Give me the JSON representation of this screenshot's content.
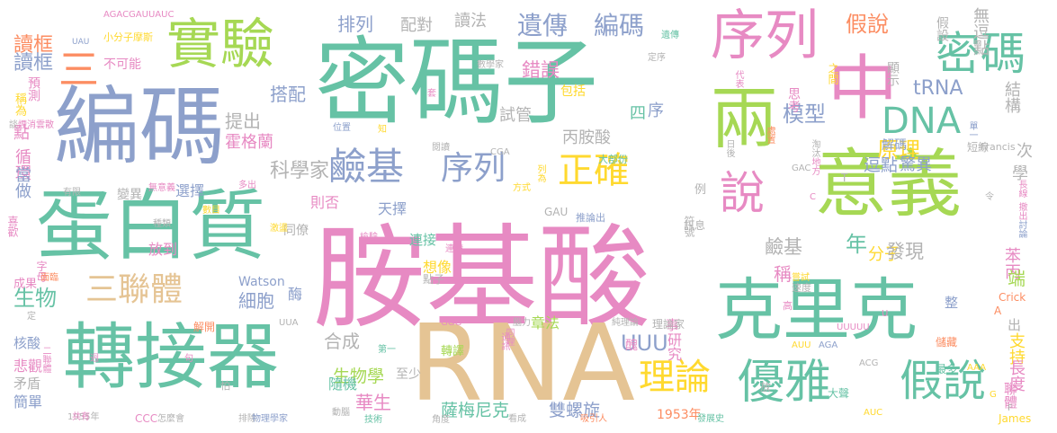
{
  "palette": {
    "teal": "#66c2a5",
    "orange": "#fc8d62",
    "blue": "#8da0cb",
    "pink": "#e78ac3",
    "lime": "#a6d854",
    "yellow": "#ffd92f",
    "tan": "#e5c494",
    "grey": "#b3b3b3"
  },
  "words": [
    {
      "text": "胺基酸",
      "color": "pink"
    },
    {
      "text": "密碼子",
      "color": "teal"
    },
    {
      "text": "RNA",
      "color": "tan"
    },
    {
      "text": "編碼",
      "color": "blue"
    },
    {
      "text": "蛋白質",
      "color": "teal"
    },
    {
      "text": "轉接器",
      "color": "teal"
    },
    {
      "text": "克里克",
      "color": "teal"
    },
    {
      "text": "意義",
      "color": "lime"
    },
    {
      "text": "中",
      "color": "pink"
    },
    {
      "text": "兩",
      "color": "lime"
    },
    {
      "text": "序列",
      "color": "pink"
    },
    {
      "text": "實驗",
      "color": "lime"
    },
    {
      "text": "密碼",
      "color": "teal"
    },
    {
      "text": "優雅",
      "color": "teal"
    },
    {
      "text": "假說",
      "color": "teal"
    },
    {
      "text": "說",
      "color": "pink"
    },
    {
      "text": "DNA",
      "color": "teal"
    },
    {
      "text": "鹼基",
      "color": "blue"
    },
    {
      "text": "序列",
      "color": "blue"
    },
    {
      "text": "正確",
      "color": "yellow"
    },
    {
      "text": "理論",
      "color": "yellow"
    },
    {
      "text": "三聯體",
      "color": "tan"
    },
    {
      "text": "三",
      "color": "orange"
    },
    {
      "text": "遺傳",
      "color": "blue"
    },
    {
      "text": "編碼",
      "color": "blue"
    },
    {
      "text": "假說",
      "color": "orange"
    },
    {
      "text": "模型",
      "color": "blue"
    },
    {
      "text": "原理",
      "color": "yellow"
    },
    {
      "text": "UUU",
      "color": "blue"
    },
    {
      "text": "tRNA",
      "color": "blue"
    },
    {
      "text": "薩梅尼克",
      "color": "teal"
    },
    {
      "text": "雙螺旋",
      "color": "blue"
    },
    {
      "text": "生物學",
      "color": "lime"
    },
    {
      "text": "華生",
      "color": "pink"
    },
    {
      "text": "鹼基",
      "color": "grey"
    },
    {
      "text": "年",
      "color": "teal"
    },
    {
      "text": "分子",
      "color": "yellow"
    },
    {
      "text": "發現",
      "color": "grey"
    },
    {
      "text": "科學家",
      "color": "grey"
    },
    {
      "text": "細胞",
      "color": "blue"
    },
    {
      "text": "合成",
      "color": "grey"
    },
    {
      "text": "生物",
      "color": "teal"
    },
    {
      "text": "讀框",
      "color": "orange"
    },
    {
      "text": "讀框",
      "color": "blue"
    },
    {
      "text": "提出",
      "color": "grey"
    },
    {
      "text": "搭配",
      "color": "blue"
    },
    {
      "text": "霍格蘭",
      "color": "pink"
    },
    {
      "text": "逗點",
      "color": "blue"
    },
    {
      "text": "驚異",
      "color": "blue"
    },
    {
      "text": "配對",
      "color": "grey"
    },
    {
      "text": "排列",
      "color": "blue"
    },
    {
      "text": "讀法",
      "color": "grey"
    },
    {
      "text": "錯誤",
      "color": "pink"
    },
    {
      "text": "試管",
      "color": "grey"
    },
    {
      "text": "丙胺酸",
      "color": "grey"
    },
    {
      "text": "四",
      "color": "teal"
    },
    {
      "text": "序",
      "color": "blue"
    },
    {
      "text": "結構",
      "color": "grey"
    },
    {
      "text": "則否",
      "color": "pink"
    },
    {
      "text": "天擇",
      "color": "blue"
    },
    {
      "text": "連接",
      "color": "teal"
    },
    {
      "text": "想像",
      "color": "yellow"
    },
    {
      "text": "稱",
      "color": "pink"
    },
    {
      "text": "苯丙",
      "color": "pink"
    },
    {
      "text": "端",
      "color": "lime"
    },
    {
      "text": "出",
      "color": "grey"
    },
    {
      "text": "支持",
      "color": "yellow"
    },
    {
      "text": "長度",
      "color": "pink"
    },
    {
      "text": "聯體",
      "color": "pink"
    },
    {
      "text": "核酸",
      "color": "blue"
    },
    {
      "text": "悲觀",
      "color": "pink"
    },
    {
      "text": "簡單",
      "color": "blue"
    },
    {
      "text": "矛盾",
      "color": "grey"
    },
    {
      "text": "成果",
      "color": "pink"
    },
    {
      "text": "放到",
      "color": "pink"
    },
    {
      "text": "選擇",
      "color": "blue"
    },
    {
      "text": "變異",
      "color": "grey"
    },
    {
      "text": "同僚",
      "color": "grey"
    },
    {
      "text": "酶",
      "color": "blue"
    },
    {
      "text": "隨機",
      "color": "teal"
    },
    {
      "text": "至少",
      "color": "grey"
    },
    {
      "text": "章法",
      "color": "lime"
    },
    {
      "text": "整",
      "color": "blue"
    },
    {
      "text": "事",
      "color": "pink"
    },
    {
      "text": "研究",
      "color": "pink"
    },
    {
      "text": "符號",
      "color": "grey"
    },
    {
      "text": "例",
      "color": "grey"
    },
    {
      "text": "解碼",
      "color": "blue"
    },
    {
      "text": "無逗點",
      "color": "grey"
    },
    {
      "text": "假設",
      "color": "grey"
    },
    {
      "text": "之間",
      "color": "yellow"
    },
    {
      "text": "顯示",
      "color": "grey"
    },
    {
      "text": "不可能",
      "color": "pink"
    },
    {
      "text": "預測",
      "color": "pink"
    },
    {
      "text": "稱為",
      "color": "yellow"
    },
    {
      "text": "點",
      "color": "pink"
    },
    {
      "text": "循環",
      "color": "pink"
    },
    {
      "text": "當做",
      "color": "blue"
    },
    {
      "text": "思考",
      "color": "pink"
    },
    {
      "text": "包括",
      "color": "yellow"
    },
    {
      "text": "次",
      "color": "grey"
    },
    {
      "text": "學",
      "color": "grey"
    },
    {
      "text": "Watson",
      "color": "blue"
    },
    {
      "text": "理論家",
      "color": "grey"
    },
    {
      "text": "1953年",
      "color": "orange"
    },
    {
      "text": "AGACGAUUAUC",
      "color": "pink"
    },
    {
      "text": "小分子摩斯",
      "color": "yellow"
    },
    {
      "text": "UAU",
      "color": "blue"
    },
    {
      "text": "Francis",
      "color": "grey"
    },
    {
      "text": "短線",
      "color": "grey"
    },
    {
      "text": "GAU",
      "color": "grey"
    },
    {
      "text": "大部份",
      "color": "teal"
    },
    {
      "text": "推論出",
      "color": "blue"
    },
    {
      "text": "轉譯",
      "color": "lime"
    },
    {
      "text": "純理論",
      "color": "grey"
    },
    {
      "text": "腦力",
      "color": "grey"
    },
    {
      "text": "GGG",
      "color": "pink"
    },
    {
      "text": "UUA",
      "color": "grey"
    },
    {
      "text": "UUUUU",
      "color": "pink"
    },
    {
      "text": "AGA",
      "color": "blue"
    },
    {
      "text": "AUU",
      "color": "yellow"
    },
    {
      "text": "AAA",
      "color": "yellow"
    },
    {
      "text": "ACG",
      "color": "grey"
    },
    {
      "text": "AUC",
      "color": "yellow"
    },
    {
      "text": "CCC",
      "color": "pink"
    },
    {
      "text": "CGA",
      "color": "grey"
    },
    {
      "text": "GAC",
      "color": "grey"
    },
    {
      "text": "Crick",
      "color": "orange"
    },
    {
      "text": "James",
      "color": "yellow"
    },
    {
      "text": "1955年",
      "color": "grey"
    },
    {
      "text": "怎麼會",
      "color": "grey"
    },
    {
      "text": "排除",
      "color": "grey"
    },
    {
      "text": "物理學家",
      "color": "blue"
    },
    {
      "text": "動腦",
      "color": "grey"
    },
    {
      "text": "技術",
      "color": "teal"
    },
    {
      "text": "角度",
      "color": "grey"
    },
    {
      "text": "看成",
      "color": "grey"
    },
    {
      "text": "吸引人",
      "color": "orange"
    },
    {
      "text": "發展史",
      "color": "teal"
    },
    {
      "text": "大聲",
      "color": "teal"
    },
    {
      "text": "最多",
      "color": "teal"
    },
    {
      "text": "儲藏",
      "color": "orange"
    },
    {
      "text": "高",
      "color": "pink"
    },
    {
      "text": "速度",
      "color": "grey"
    },
    {
      "text": "嘗試",
      "color": "yellow"
    },
    {
      "text": "訊息",
      "color": "grey"
    },
    {
      "text": "檢驗",
      "color": "pink"
    },
    {
      "text": "種類",
      "color": "grey"
    },
    {
      "text": "數目",
      "color": "yellow"
    },
    {
      "text": "多出",
      "color": "pink"
    },
    {
      "text": "無意義",
      "color": "pink"
    },
    {
      "text": "有限",
      "color": "grey"
    },
    {
      "text": "閱讀",
      "color": "grey"
    },
    {
      "text": "位置",
      "color": "blue"
    },
    {
      "text": "知",
      "color": "yellow"
    },
    {
      "text": "套",
      "color": "pink"
    },
    {
      "text": "數學家",
      "color": "grey"
    },
    {
      "text": "定序",
      "color": "grey"
    },
    {
      "text": "遺傳",
      "color": "teal"
    },
    {
      "text": "代表",
      "color": "pink"
    },
    {
      "text": "單一",
      "color": "blue"
    },
    {
      "text": "處置",
      "color": "orange"
    },
    {
      "text": "日後",
      "color": "grey"
    },
    {
      "text": "淘汰",
      "color": "grey"
    },
    {
      "text": "地方",
      "color": "pink"
    },
    {
      "text": "長線",
      "color": "pink"
    },
    {
      "text": "撤出",
      "color": "pink"
    },
    {
      "text": "討論",
      "color": "blue"
    },
    {
      "text": "喜歡",
      "color": "pink"
    },
    {
      "text": "字母",
      "color": "pink"
    },
    {
      "text": "面臨",
      "color": "orange"
    },
    {
      "text": "激盪",
      "color": "yellow"
    },
    {
      "text": "點子",
      "color": "grey"
    },
    {
      "text": "連續",
      "color": "pink"
    },
    {
      "text": "解開",
      "color": "orange"
    },
    {
      "text": "第一",
      "color": "teal"
    },
    {
      "text": "通訊",
      "color": "pink"
    },
    {
      "text": "同理",
      "color": "pink"
    },
    {
      "text": "列為",
      "color": "yellow"
    },
    {
      "text": "二聯體",
      "color": "pink"
    },
    {
      "text": "煙消雲散",
      "color": "pink"
    },
    {
      "text": "共有",
      "color": "pink"
    },
    {
      "text": "談",
      "color": "grey"
    },
    {
      "text": "醜",
      "color": "pink"
    },
    {
      "text": "令",
      "color": "grey"
    },
    {
      "text": "A",
      "color": "orange"
    },
    {
      "text": "U",
      "color": "pink"
    },
    {
      "text": "F",
      "color": "grey"
    },
    {
      "text": "G",
      "color": "yellow"
    },
    {
      "text": "T",
      "color": "grey"
    },
    {
      "text": "C",
      "color": "pink"
    },
    {
      "text": "迥",
      "color": "pink"
    },
    {
      "text": "怕",
      "color": "grey"
    },
    {
      "text": "句",
      "color": "pink"
    },
    {
      "text": "放",
      "color": "grey"
    },
    {
      "text": "定",
      "color": "grey"
    },
    {
      "text": "方式",
      "color": "yellow"
    },
    {
      "text": "式",
      "color": "grey"
    },
    {
      "text": "慢",
      "color": "grey"
    }
  ]
}
